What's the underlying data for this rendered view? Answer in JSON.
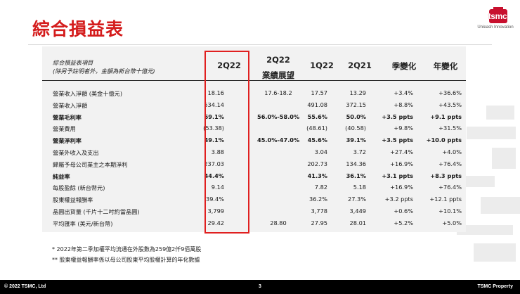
{
  "title": "綜合損益表",
  "logo": {
    "wordmark": "tsmc",
    "tagline": "Unleash Innovation"
  },
  "table": {
    "header_label": [
      "綜合損益表項目",
      "(除另予註明者外，金額為新台幣十億元)"
    ],
    "columns": [
      {
        "lines": [
          "2Q22"
        ]
      },
      {
        "lines": [
          "2Q22",
          "業績展望"
        ]
      },
      {
        "lines": [
          "1Q22"
        ]
      },
      {
        "lines": [
          "2Q21"
        ]
      },
      {
        "lines": [
          "季變化"
        ]
      },
      {
        "lines": [
          "年變化"
        ]
      }
    ],
    "rows": [
      {
        "label": "營業收入淨額 (美金十億元)",
        "bold": false,
        "values": [
          "18.16",
          "17.6-18.2",
          "17.57",
          "13.29",
          "+3.4%",
          "+36.6%"
        ]
      },
      {
        "label": "營業收入淨額",
        "bold": false,
        "values": [
          "534.14",
          "",
          "491.08",
          "372.15",
          "+8.8%",
          "+43.5%"
        ]
      },
      {
        "label": "營業毛利率",
        "bold": true,
        "values": [
          "59.1%",
          "56.0%-58.0%",
          "55.6%",
          "50.0%",
          "+3.5 ppts",
          "+9.1 ppts"
        ]
      },
      {
        "label": "營業費用",
        "bold": false,
        "values": [
          "(53.38)",
          "",
          "(48.61)",
          "(40.58)",
          "+9.8%",
          "+31.5%"
        ]
      },
      {
        "label": "營業淨利率",
        "bold": true,
        "values": [
          "49.1%",
          "45.0%-47.0%",
          "45.6%",
          "39.1%",
          "+3.5 ppts",
          "+10.0 ppts"
        ]
      },
      {
        "label": "營業外收入及支出",
        "bold": false,
        "values": [
          "3.88",
          "",
          "3.04",
          "3.72",
          "+27.4%",
          "+4.0%"
        ]
      },
      {
        "label": "歸屬予母公司業主之本期淨利",
        "bold": false,
        "values": [
          "237.03",
          "",
          "202.73",
          "134.36",
          "+16.9%",
          "+76.4%"
        ]
      },
      {
        "label": "純益率",
        "bold": true,
        "values": [
          "44.4%",
          "",
          "41.3%",
          "36.1%",
          "+3.1 ppts",
          "+8.3 ppts"
        ]
      },
      {
        "label": "每股盈餘 (新台幣元)",
        "bold": false,
        "values": [
          "9.14",
          "",
          "7.82",
          "5.18",
          "+16.9%",
          "+76.4%"
        ]
      },
      {
        "label": "股東權益報酬率",
        "bold": false,
        "values": [
          "39.4%",
          "",
          "36.2%",
          "27.3%",
          "+3.2 ppts",
          "+12.1 ppts"
        ]
      },
      {
        "label": "晶圓出貨量 (千片十二吋約當晶圓)",
        "bold": false,
        "values": [
          "3,799",
          "",
          "3,778",
          "3,449",
          "+0.6%",
          "+10.1%"
        ]
      },
      {
        "label": "平均匯率 (美元/新台幣)",
        "bold": false,
        "values": [
          "29.42",
          "28.80",
          "27.95",
          "28.01",
          "+5.2%",
          "+5.0%"
        ]
      }
    ]
  },
  "notes": [
    "*    2022年第二季加權平均流通在外股數為259億2仟9佰萬股",
    "**  股東權益報酬率係以母公司股東平均股權計算的年化數據"
  ],
  "footer": {
    "left": "© 2022 TSMC, Ltd",
    "page": "3",
    "right": "TSMC Property"
  },
  "colors": {
    "title": "#d41c1c",
    "highlight": "#e02020",
    "logo": "#c8102e"
  }
}
